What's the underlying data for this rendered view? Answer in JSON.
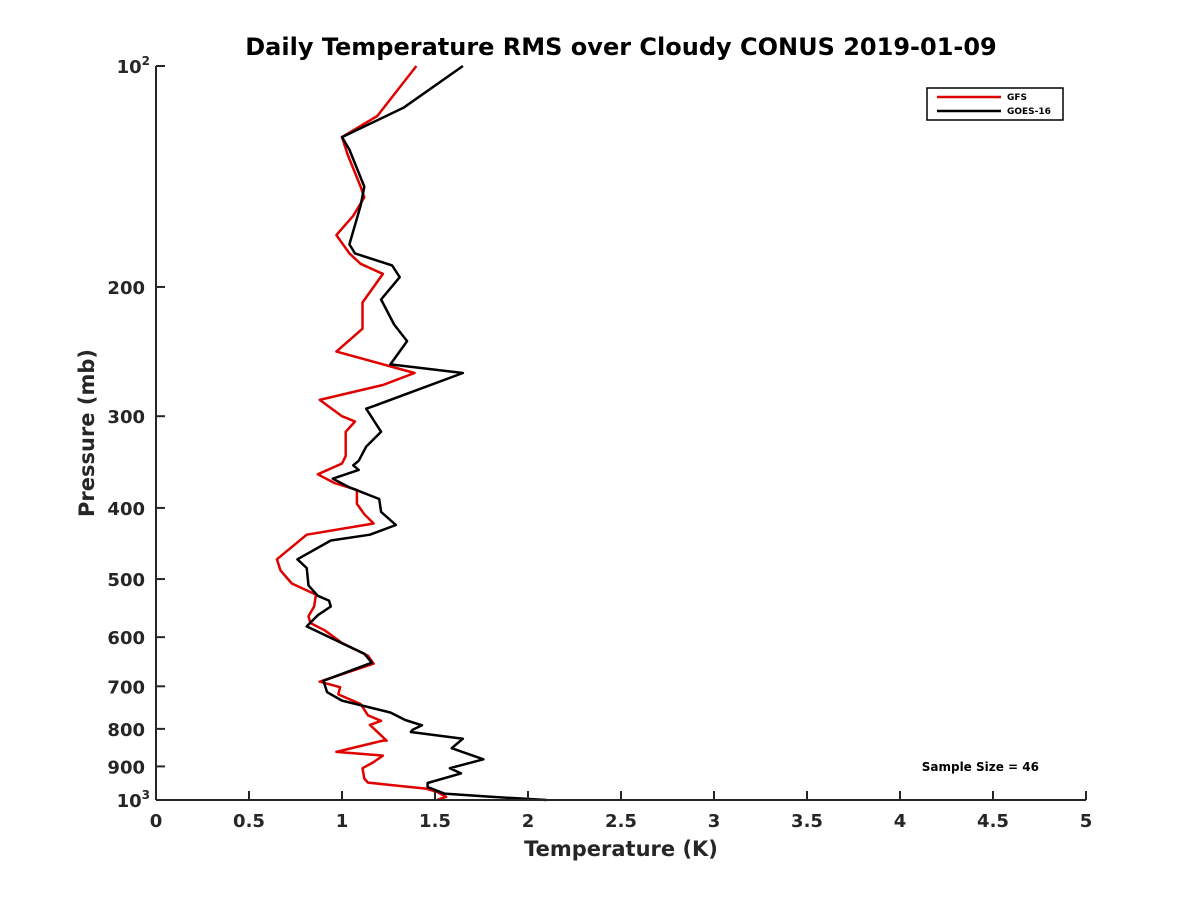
{
  "chart_data": {
    "type": "line",
    "title": "Daily Temperature RMS over Cloudy CONUS 2019-01-09",
    "xlabel": "Temperature (K)",
    "ylabel": "Pressure (mb)",
    "xlim": [
      0,
      5
    ],
    "ylim": [
      100,
      1000
    ],
    "y_scale": "log",
    "y_reversed": true,
    "x_ticks": [
      {
        "value": 0,
        "label": "0"
      },
      {
        "value": 0.5,
        "label": "0.5"
      },
      {
        "value": 1,
        "label": "1"
      },
      {
        "value": 1.5,
        "label": "1.5"
      },
      {
        "value": 2,
        "label": "2"
      },
      {
        "value": 2.5,
        "label": "2.5"
      },
      {
        "value": 3,
        "label": "3"
      },
      {
        "value": 3.5,
        "label": "3.5"
      },
      {
        "value": 4,
        "label": "4"
      },
      {
        "value": 4.5,
        "label": "4.5"
      },
      {
        "value": 5,
        "label": "5"
      }
    ],
    "y_ticks": [
      {
        "value": 100,
        "label": "10",
        "sup": "2"
      },
      {
        "value": 200,
        "label": "200"
      },
      {
        "value": 300,
        "label": "300"
      },
      {
        "value": 400,
        "label": "400"
      },
      {
        "value": 500,
        "label": "500"
      },
      {
        "value": 600,
        "label": "600"
      },
      {
        "value": 700,
        "label": "700"
      },
      {
        "value": 800,
        "label": "800"
      },
      {
        "value": 900,
        "label": "900"
      },
      {
        "value": 1000,
        "label": "10",
        "sup": "3"
      }
    ],
    "legend_position": "top-right",
    "annotation": "Sample Size = 46",
    "series": [
      {
        "name": "GFS",
        "color": "#e00000",
        "points": [
          [
            1.4,
            100
          ],
          [
            1.19,
            117
          ],
          [
            1.0,
            125
          ],
          [
            1.03,
            132
          ],
          [
            1.1,
            146
          ],
          [
            1.12,
            151
          ],
          [
            1.06,
            160
          ],
          [
            0.97,
            170
          ],
          [
            1.04,
            180
          ],
          [
            1.1,
            186
          ],
          [
            1.22,
            192
          ],
          [
            1.11,
            210
          ],
          [
            1.11,
            228
          ],
          [
            0.97,
            245
          ],
          [
            1.39,
            262
          ],
          [
            1.22,
            272
          ],
          [
            0.88,
            285
          ],
          [
            1.0,
            300
          ],
          [
            1.07,
            305
          ],
          [
            1.02,
            315
          ],
          [
            1.02,
            340
          ],
          [
            1.0,
            348
          ],
          [
            0.87,
            360
          ],
          [
            0.96,
            370
          ],
          [
            1.08,
            378
          ],
          [
            1.08,
            395
          ],
          [
            1.12,
            408
          ],
          [
            1.17,
            420
          ],
          [
            0.81,
            435
          ],
          [
            0.65,
            470
          ],
          [
            0.67,
            487
          ],
          [
            0.73,
            507
          ],
          [
            0.86,
            525
          ],
          [
            0.85,
            545
          ],
          [
            0.82,
            562
          ],
          [
            0.83,
            574
          ],
          [
            0.91,
            588
          ],
          [
            1.0,
            611
          ],
          [
            1.14,
            636
          ],
          [
            1.17,
            652
          ],
          [
            0.88,
            690
          ],
          [
            0.99,
            702
          ],
          [
            0.98,
            718
          ],
          [
            1.1,
            740
          ],
          [
            1.14,
            767
          ],
          [
            1.21,
            780
          ],
          [
            1.15,
            790
          ],
          [
            1.24,
            830
          ],
          [
            1.22,
            830
          ],
          [
            0.97,
            860
          ],
          [
            1.22,
            870
          ],
          [
            1.17,
            888
          ],
          [
            1.11,
            905
          ],
          [
            1.12,
            935
          ],
          [
            1.14,
            947
          ],
          [
            1.45,
            965
          ],
          [
            1.51,
            975
          ],
          [
            1.56,
            990
          ],
          [
            1.51,
            1000
          ]
        ]
      },
      {
        "name": "GOES-16",
        "color": "#000000",
        "points": [
          [
            1.65,
            100
          ],
          [
            1.33,
            114
          ],
          [
            1.0,
            125
          ],
          [
            1.04,
            130
          ],
          [
            1.12,
            146
          ],
          [
            1.1,
            155
          ],
          [
            1.04,
            175
          ],
          [
            1.07,
            180
          ],
          [
            1.27,
            187
          ],
          [
            1.31,
            194
          ],
          [
            1.21,
            208
          ],
          [
            1.28,
            225
          ],
          [
            1.35,
            237
          ],
          [
            1.26,
            255
          ],
          [
            1.65,
            262
          ],
          [
            1.18,
            290
          ],
          [
            1.13,
            293
          ],
          [
            1.21,
            315
          ],
          [
            1.13,
            330
          ],
          [
            1.09,
            345
          ],
          [
            1.06,
            350
          ],
          [
            1.09,
            355
          ],
          [
            0.95,
            365
          ],
          [
            1.04,
            375
          ],
          [
            1.2,
            389
          ],
          [
            1.21,
            405
          ],
          [
            1.29,
            422
          ],
          [
            1.15,
            435
          ],
          [
            0.94,
            443
          ],
          [
            0.76,
            470
          ],
          [
            0.81,
            483
          ],
          [
            0.82,
            510
          ],
          [
            0.87,
            527
          ],
          [
            0.93,
            535
          ],
          [
            0.94,
            545
          ],
          [
            0.87,
            560
          ],
          [
            0.81,
            580
          ],
          [
            1.02,
            615
          ],
          [
            1.12,
            632
          ],
          [
            1.16,
            650
          ],
          [
            0.9,
            688
          ],
          [
            0.92,
            713
          ],
          [
            1.0,
            732
          ],
          [
            1.26,
            760
          ],
          [
            1.34,
            778
          ],
          [
            1.43,
            791
          ],
          [
            1.38,
            802
          ],
          [
            1.37,
            808
          ],
          [
            1.65,
            825
          ],
          [
            1.59,
            850
          ],
          [
            1.76,
            880
          ],
          [
            1.58,
            905
          ],
          [
            1.64,
            920
          ],
          [
            1.46,
            948
          ],
          [
            1.46,
            960
          ],
          [
            1.55,
            980
          ],
          [
            1.8,
            990
          ],
          [
            2.1,
            1000
          ]
        ]
      }
    ]
  }
}
